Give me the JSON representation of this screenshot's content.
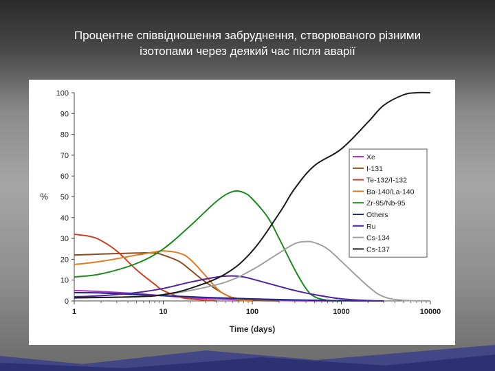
{
  "slide": {
    "title_line1": "Процентне співвідношення забруднення, створюваного різними",
    "title_line2": "ізотопами через деякий час після аварії"
  },
  "chart_data": {
    "type": "line",
    "xscale": "log",
    "xlim": [
      1,
      10000
    ],
    "ylim": [
      0,
      100
    ],
    "xlabel": "Time (days)",
    "ylabel": "%",
    "xticks": [
      "1",
      "10",
      "100",
      "1000",
      "10000"
    ],
    "yticks": [
      "0",
      "10",
      "20",
      "30",
      "40",
      "50",
      "60",
      "70",
      "80",
      "90",
      "100"
    ],
    "legend_position": "right",
    "grid": false,
    "series": [
      {
        "name": "Xe",
        "color": "#b030c0",
        "points": [
          [
            1,
            5
          ],
          [
            2,
            4.5
          ],
          [
            5,
            3.5
          ],
          [
            10,
            2.5
          ],
          [
            20,
            1.5
          ],
          [
            50,
            0.8
          ],
          [
            100,
            0.3
          ],
          [
            300,
            0.1
          ],
          [
            1000,
            0
          ]
        ]
      },
      {
        "name": "I-131",
        "color": "#8b4a1c",
        "points": [
          [
            1,
            22
          ],
          [
            2,
            22.5
          ],
          [
            5,
            23
          ],
          [
            8,
            23
          ],
          [
            10,
            22
          ],
          [
            15,
            19
          ],
          [
            20,
            15
          ],
          [
            30,
            9
          ],
          [
            50,
            3
          ],
          [
            70,
            1
          ],
          [
            100,
            0.3
          ],
          [
            200,
            0
          ]
        ]
      },
      {
        "name": "Te-132/I-132",
        "color": "#d04020",
        "points": [
          [
            1,
            32
          ],
          [
            1.5,
            31
          ],
          [
            2,
            29
          ],
          [
            3,
            24
          ],
          [
            5,
            15
          ],
          [
            8,
            8
          ],
          [
            10,
            5
          ],
          [
            15,
            2
          ],
          [
            20,
            1
          ],
          [
            40,
            0
          ]
        ]
      },
      {
        "name": "Ba-140/La-140",
        "color": "#e07a20",
        "points": [
          [
            1,
            17.5
          ],
          [
            2,
            19
          ],
          [
            5,
            22
          ],
          [
            8,
            23.5
          ],
          [
            10,
            24
          ],
          [
            15,
            23
          ],
          [
            20,
            20
          ],
          [
            30,
            12
          ],
          [
            40,
            6
          ],
          [
            50,
            3
          ],
          [
            70,
            0.5
          ],
          [
            100,
            0
          ]
        ]
      },
      {
        "name": "Zr-95/Nb-95",
        "color": "#1a8a1a",
        "points": [
          [
            1,
            11.5
          ],
          [
            2,
            13
          ],
          [
            5,
            18
          ],
          [
            10,
            25
          ],
          [
            20,
            36
          ],
          [
            40,
            48
          ],
          [
            60,
            52.5
          ],
          [
            80,
            52
          ],
          [
            100,
            49
          ],
          [
            150,
            40
          ],
          [
            200,
            30
          ],
          [
            300,
            15
          ],
          [
            400,
            6
          ],
          [
            500,
            2
          ],
          [
            700,
            0.3
          ],
          [
            1000,
            0
          ]
        ]
      },
      {
        "name": "Others",
        "color": "#1a2a8a",
        "points": [
          [
            1,
            4
          ],
          [
            2,
            3.8
          ],
          [
            5,
            3
          ],
          [
            10,
            2.5
          ],
          [
            20,
            2
          ],
          [
            40,
            1.5
          ],
          [
            100,
            1
          ],
          [
            300,
            0.5
          ],
          [
            1000,
            0.1
          ],
          [
            3000,
            0
          ]
        ]
      },
      {
        "name": "Ru",
        "color": "#5020a0",
        "points": [
          [
            1,
            2
          ],
          [
            2,
            2.5
          ],
          [
            5,
            4
          ],
          [
            10,
            6
          ],
          [
            20,
            9
          ],
          [
            40,
            11.5
          ],
          [
            60,
            12
          ],
          [
            80,
            11.5
          ],
          [
            100,
            10.5
          ],
          [
            200,
            7
          ],
          [
            300,
            5
          ],
          [
            500,
            3
          ],
          [
            1000,
            1
          ],
          [
            2000,
            0.2
          ],
          [
            3000,
            0
          ]
        ]
      },
      {
        "name": "Cs-134",
        "color": "#a0a0a0",
        "points": [
          [
            1,
            1.5
          ],
          [
            5,
            2
          ],
          [
            10,
            3
          ],
          [
            20,
            5
          ],
          [
            50,
            9
          ],
          [
            100,
            15
          ],
          [
            200,
            23
          ],
          [
            300,
            27.5
          ],
          [
            400,
            28.5
          ],
          [
            500,
            28
          ],
          [
            700,
            25
          ],
          [
            1000,
            19
          ],
          [
            2000,
            7
          ],
          [
            3000,
            2
          ],
          [
            5000,
            0.3
          ],
          [
            10000,
            0
          ]
        ]
      },
      {
        "name": "Cs-137",
        "color": "#1a1a1a",
        "points": [
          [
            1,
            1.5
          ],
          [
            5,
            2
          ],
          [
            10,
            3
          ],
          [
            20,
            6
          ],
          [
            50,
            13
          ],
          [
            100,
            24
          ],
          [
            200,
            42
          ],
          [
            300,
            54
          ],
          [
            500,
            65
          ],
          [
            1000,
            73
          ],
          [
            2000,
            86
          ],
          [
            3000,
            94
          ],
          [
            5000,
            99
          ],
          [
            7000,
            100
          ],
          [
            10000,
            100
          ]
        ]
      }
    ]
  }
}
